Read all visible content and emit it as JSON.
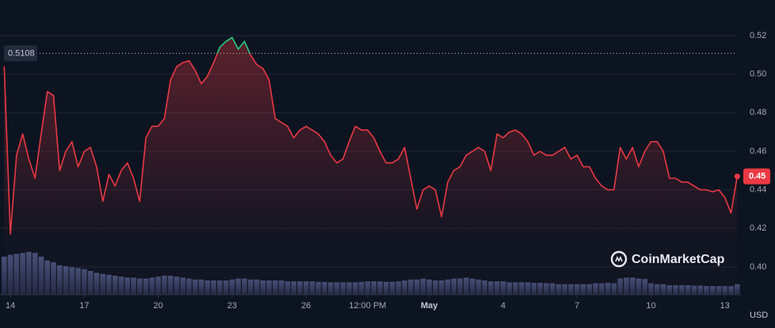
{
  "chart_data": {
    "type": "line",
    "watermark": "CoinMarketCap",
    "currency": "USD",
    "color": "#ea3943",
    "highlight_color": "#16c784",
    "reference": 0.5108,
    "current_label": "0.45",
    "volume_color": "#3b4670",
    "xlim": [
      13.74,
      43.49
    ],
    "ylim": [
      0.3856,
      0.5385
    ],
    "volume_lim": [
      0,
      100
    ],
    "yticks": [
      {
        "value": 0.4,
        "label": "0.40"
      },
      0.42,
      0.44,
      0.46,
      0.48,
      {
        "value": 0.5,
        "label": "0.50"
      },
      0.52
    ],
    "xticks": [
      14,
      17,
      20,
      23,
      26,
      {
        "value": 28.5,
        "label": "12:00 PM"
      },
      {
        "value": 31,
        "label": "May"
      },
      {
        "value": 34,
        "label": "4"
      },
      {
        "value": 37,
        "label": "7"
      },
      {
        "value": 40,
        "label": "10"
      },
      {
        "value": 43,
        "label": "13"
      }
    ],
    "grid": true,
    "x": [
      13.75,
      14,
      14.25,
      14.5,
      14.75,
      15,
      15.25,
      15.5,
      15.75,
      16,
      16.25,
      16.5,
      16.75,
      17,
      17.25,
      17.5,
      17.75,
      18,
      18.25,
      18.5,
      18.75,
      19,
      19.25,
      19.5,
      19.75,
      20,
      20.25,
      20.5,
      20.75,
      21,
      21.25,
      21.5,
      21.75,
      22,
      22.25,
      22.5,
      22.75,
      23,
      23.25,
      23.5,
      23.75,
      24,
      24.25,
      24.5,
      24.75,
      25,
      25.25,
      25.5,
      25.75,
      26,
      26.25,
      26.5,
      26.75,
      27,
      27.25,
      27.5,
      27.75,
      28,
      28.25,
      28.5,
      28.75,
      29,
      29.25,
      29.5,
      29.75,
      30,
      30.25,
      30.5,
      30.75,
      31,
      31.25,
      31.5,
      31.75,
      32,
      32.25,
      32.5,
      32.75,
      33,
      33.25,
      33.5,
      33.75,
      34,
      34.25,
      34.5,
      34.75,
      35,
      35.25,
      35.5,
      35.75,
      36,
      36.25,
      36.5,
      36.75,
      37,
      37.25,
      37.5,
      37.75,
      38,
      38.25,
      38.5,
      38.75,
      39,
      39.25,
      39.5,
      39.75,
      40,
      40.25,
      40.5,
      40.75,
      41,
      41.25,
      41.5,
      41.75,
      42,
      42.25,
      42.5,
      42.75,
      43,
      43.25,
      43.5
    ],
    "values": [
      0.504,
      0.417,
      0.458,
      0.469,
      0.456,
      0.446,
      0.469,
      0.491,
      0.489,
      0.45,
      0.46,
      0.465,
      0.452,
      0.46,
      0.462,
      0.452,
      0.434,
      0.448,
      0.442,
      0.45,
      0.454,
      0.446,
      0.434,
      0.467,
      0.473,
      0.473,
      0.477,
      0.497,
      0.504,
      0.506,
      0.507,
      0.502,
      0.495,
      0.499,
      0.506,
      0.514,
      0.517,
      0.519,
      0.513,
      0.517,
      0.51,
      0.505,
      0.503,
      0.497,
      0.477,
      0.475,
      0.473,
      0.467,
      0.471,
      0.473,
      0.471,
      0.469,
      0.465,
      0.458,
      0.454,
      0.456,
      0.465,
      0.473,
      0.471,
      0.471,
      0.467,
      0.46,
      0.454,
      0.454,
      0.456,
      0.462,
      0.446,
      0.43,
      0.44,
      0.442,
      0.44,
      0.426,
      0.444,
      0.45,
      0.452,
      0.458,
      0.46,
      0.462,
      0.46,
      0.45,
      0.469,
      0.467,
      0.47,
      0.471,
      0.469,
      0.465,
      0.458,
      0.46,
      0.458,
      0.458,
      0.46,
      0.462,
      0.456,
      0.458,
      0.452,
      0.452,
      0.446,
      0.442,
      0.44,
      0.44,
      0.462,
      0.456,
      0.462,
      0.452,
      0.46,
      0.465,
      0.465,
      0.46,
      0.446,
      0.446,
      0.444,
      0.444,
      0.442,
      0.44,
      0.44,
      0.439,
      0.44,
      0.436,
      0.428,
      0.447
    ],
    "volume": [
      80,
      84,
      86,
      88,
      90,
      88,
      80,
      72,
      68,
      62,
      60,
      58,
      56,
      54,
      50,
      46,
      44,
      42,
      40,
      38,
      36,
      36,
      34,
      34,
      36,
      38,
      40,
      40,
      38,
      36,
      34,
      32,
      32,
      30,
      30,
      30,
      30,
      32,
      34,
      34,
      32,
      32,
      30,
      30,
      30,
      30,
      28,
      28,
      28,
      28,
      28,
      27,
      27,
      26,
      26,
      26,
      26,
      26,
      27,
      28,
      28,
      28,
      27,
      27,
      28,
      30,
      32,
      32,
      34,
      32,
      30,
      30,
      32,
      34,
      34,
      36,
      34,
      32,
      30,
      28,
      28,
      28,
      26,
      26,
      26,
      26,
      25,
      25,
      24,
      24,
      22,
      22,
      22,
      22,
      22,
      22,
      24,
      24,
      25,
      24,
      34,
      36,
      36,
      34,
      33,
      24,
      22,
      22,
      20,
      20,
      20,
      20,
      19,
      19,
      18,
      18,
      18,
      18,
      18,
      22
    ]
  }
}
